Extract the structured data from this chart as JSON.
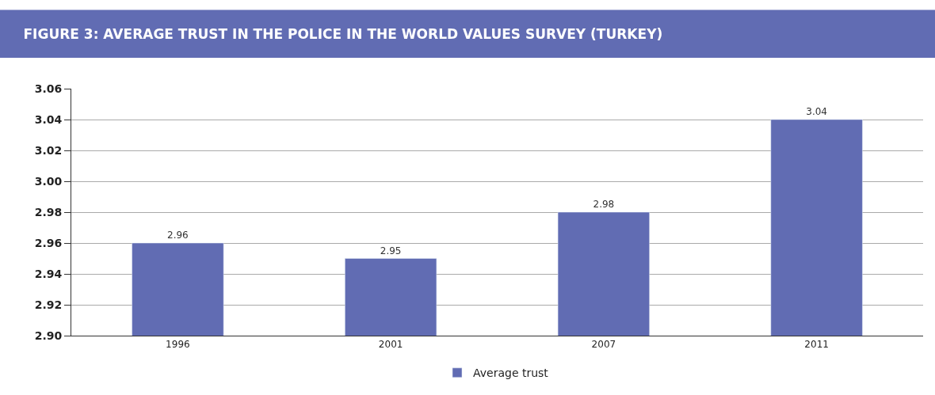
{
  "chart_data": {
    "type": "bar",
    "title": "FIGURE 3: AVERAGE TRUST IN THE POLICE IN THE WORLD VALUES SURVEY (TURKEY)",
    "categories": [
      "1996",
      "2001",
      "2007",
      "2011"
    ],
    "series": [
      {
        "name": "Average trust",
        "color": "#616cb3",
        "values": [
          2.96,
          2.95,
          2.98,
          3.04
        ]
      }
    ],
    "ylim": [
      2.9,
      3.06
    ],
    "yticks": [
      {
        "value": 2.9,
        "label": "2.90"
      },
      2.92,
      2.94,
      2.96,
      2.98,
      {
        "value": 3.0,
        "label": "3.00"
      },
      3.02,
      3.04,
      3.06
    ],
    "grid": "y",
    "legend": "bottom",
    "data_labels": true
  }
}
